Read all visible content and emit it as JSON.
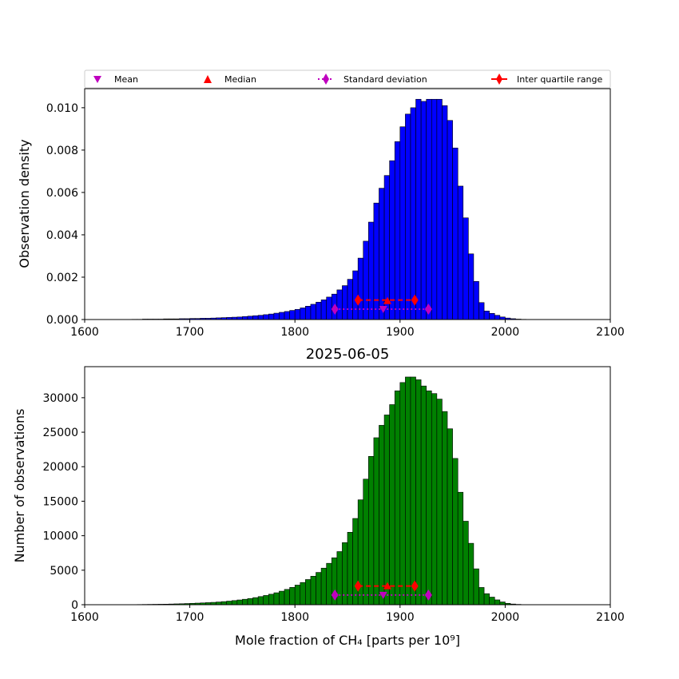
{
  "chart_data": [
    {
      "type": "bar",
      "title": "",
      "xlabel": "",
      "ylabel": "Observation density",
      "xlim": [
        1600,
        2100
      ],
      "ylim": [
        0,
        0.0109
      ],
      "x_ticks": [
        "1600",
        "1700",
        "1800",
        "1900",
        "2000",
        "2100"
      ],
      "y_ticks": [
        "0.000",
        "0.002",
        "0.004",
        "0.006",
        "0.008",
        "0.010"
      ],
      "bar_color": "#0000ff",
      "bin_width": 5,
      "bin_start": 1645,
      "values": [
        1e-05,
        1e-05,
        2e-05,
        2e-05,
        2e-05,
        2e-05,
        3e-05,
        3e-05,
        3e-05,
        4e-05,
        4e-05,
        5e-05,
        5e-05,
        6e-05,
        6e-05,
        7e-05,
        8e-05,
        9e-05,
        0.0001,
        0.00011,
        0.00012,
        0.00014,
        0.00016,
        0.00018,
        0.0002,
        0.00023,
        0.00026,
        0.0003,
        0.00034,
        0.00038,
        0.00043,
        0.00048,
        0.00055,
        0.00063,
        0.00072,
        0.00082,
        0.00093,
        0.00106,
        0.0012,
        0.0014,
        0.0016,
        0.0019,
        0.0023,
        0.0029,
        0.0037,
        0.0046,
        0.0055,
        0.0062,
        0.0068,
        0.0075,
        0.0084,
        0.0091,
        0.0097,
        0.01,
        0.0104,
        0.0103,
        0.0104,
        0.0104,
        0.0104,
        0.0101,
        0.0094,
        0.0081,
        0.0063,
        0.0048,
        0.0031,
        0.0018,
        0.0008,
        0.0004,
        0.00029,
        0.0002,
        0.00012,
        7e-05,
        4e-05,
        2e-05,
        1e-05
      ],
      "markers": {
        "mean": {
          "x": 1884,
          "y": 0.00049,
          "label": "Mean",
          "color": "#bf00bf"
        },
        "median": {
          "x": 1888,
          "y": 0.00088,
          "label": "Median",
          "color": "#ff0000"
        },
        "std": {
          "low": 1838,
          "high": 1927,
          "y": 0.00049,
          "label": "Standard deviation",
          "color": "#bf00bf"
        },
        "iqr": {
          "low": 1860,
          "high": 1914,
          "y": 0.00092,
          "label": "Inter quartile range",
          "color": "#ff0000"
        }
      },
      "legend": "top"
    },
    {
      "type": "bar",
      "title": "2025-06-05",
      "xlabel": "Mole fraction of CH₄ [parts per 10⁹]",
      "ylabel": "Number of observations",
      "xlim": [
        1600,
        2100
      ],
      "ylim": [
        0,
        34500
      ],
      "x_ticks": [
        "1600",
        "1700",
        "1800",
        "1900",
        "2000",
        "2100"
      ],
      "y_ticks": [
        "0",
        "5000",
        "10000",
        "15000",
        "20000",
        "25000",
        "30000"
      ],
      "bar_color": "#008000",
      "bin_width": 5,
      "bin_start": 1645,
      "values": [
        20,
        30,
        40,
        50,
        60,
        70,
        80,
        100,
        120,
        140,
        170,
        200,
        230,
        260,
        300,
        340,
        390,
        450,
        520,
        600,
        690,
        790,
        900,
        1030,
        1180,
        1340,
        1520,
        1730,
        1960,
        2220,
        2510,
        2840,
        3220,
        3650,
        4130,
        4680,
        5300,
        6000,
        6800,
        7700,
        9000,
        10500,
        12500,
        15200,
        18200,
        21500,
        24200,
        26000,
        27500,
        29000,
        31000,
        32200,
        33000,
        33000,
        32600,
        31700,
        31000,
        30600,
        29800,
        28000,
        25500,
        21200,
        16300,
        12100,
        8900,
        5200,
        2500,
        1600,
        1100,
        700,
        400,
        200,
        100,
        50,
        20
      ],
      "markers": {
        "mean": {
          "x": 1884,
          "y": 1400
        },
        "median": {
          "x": 1888,
          "y": 2700
        },
        "std": {
          "low": 1838,
          "high": 1927,
          "y": 1400
        },
        "iqr": {
          "low": 1860,
          "high": 1914,
          "y": 2700
        }
      }
    }
  ]
}
